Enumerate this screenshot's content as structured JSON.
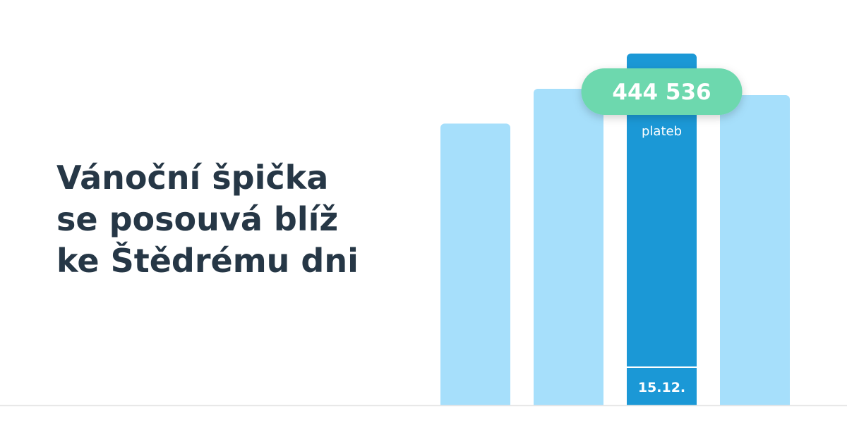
{
  "chart_data": {
    "type": "bar",
    "title_lines": [
      "Vánoční špička",
      "se posouvá blíž",
      "ke Štědrému dni"
    ],
    "categories": [
      null,
      null,
      "15.12.",
      null
    ],
    "values": [
      356000,
      400000,
      444536,
      392000
    ],
    "value_labels": [
      null,
      null,
      "444 536",
      null
    ],
    "unit_label": "plateb",
    "colors": [
      "#a6dffb",
      "#a6dffb",
      "#1b98d6",
      "#a6dffb"
    ],
    "label_color": "#6dd8ae"
  }
}
